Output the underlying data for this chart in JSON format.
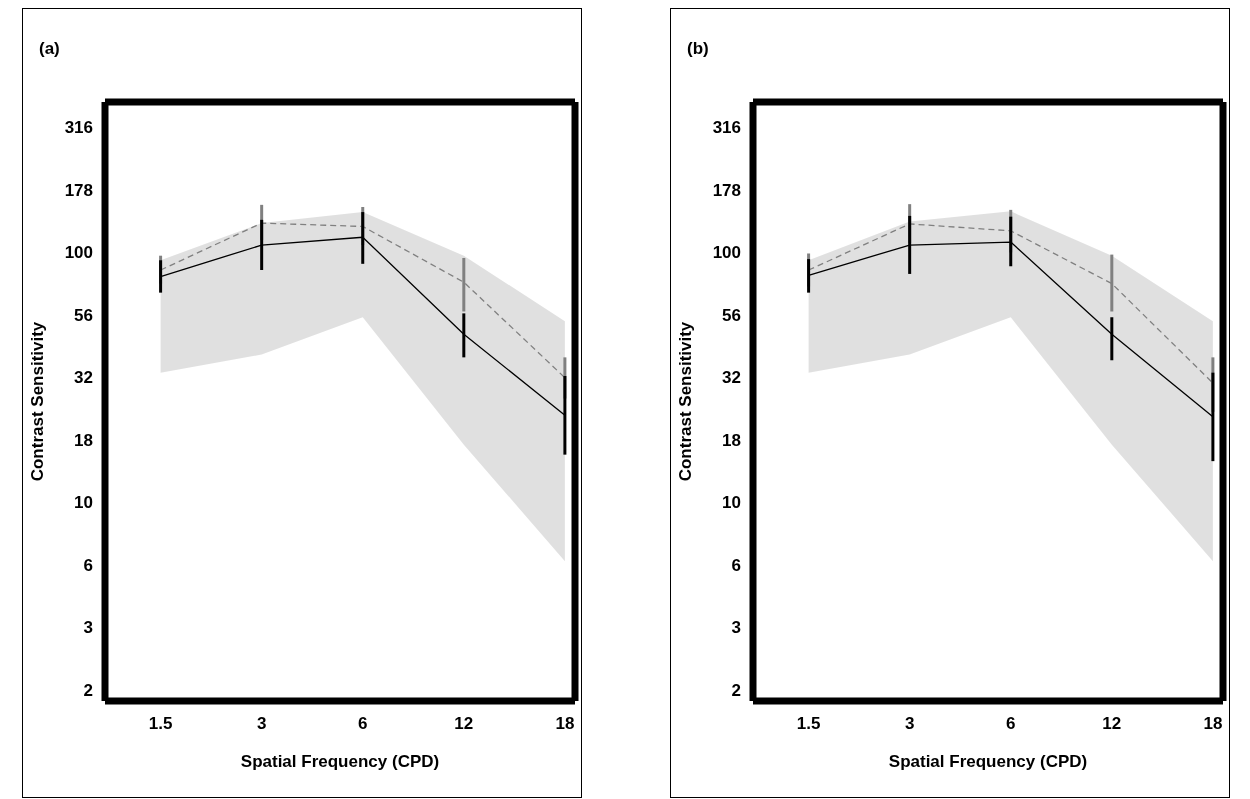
{
  "chart_data": [
    {
      "type": "line",
      "title": "(a)",
      "xlabel": "Spatial Frequency (CPD)",
      "ylabel": "Contrast Sensitivity",
      "categories": [
        "1.5",
        "3",
        "6",
        "12",
        "18"
      ],
      "log": "y",
      "ylim": [
        1.6,
        400
      ],
      "yticks": [
        {
          "value": 1.778,
          "label": "2"
        },
        {
          "value": 3.162,
          "label": "3"
        },
        {
          "value": 5.623,
          "label": "6"
        },
        {
          "value": 10,
          "label": "10"
        },
        {
          "value": 17.78,
          "label": "18"
        },
        {
          "value": 31.62,
          "label": "32"
        },
        {
          "value": 56.23,
          "label": "56"
        },
        {
          "value": 100,
          "label": "100"
        },
        {
          "value": 177.8,
          "label": "178"
        },
        {
          "value": 316.2,
          "label": "316"
        }
      ],
      "series": [
        {
          "color": "#808080",
          "line_style": "dashed",
          "values": [
            85,
            131,
            127,
            76,
            31.5
          ],
          "errors": [
            [
              75,
              97
            ],
            [
              112,
              155
            ],
            [
              107,
              152
            ],
            [
              58,
              95
            ],
            [
              26,
              38
            ]
          ]
        },
        {
          "color": "#000000",
          "line_style": "solid",
          "values": [
            80,
            107,
            115,
            47,
            22.3
          ],
          "errors": [
            [
              69,
              93
            ],
            [
              85,
              135
            ],
            [
              90,
              145
            ],
            [
              38,
              57
            ],
            [
              15.5,
              32
            ]
          ],
          "lower": [
            33,
            39,
            55,
            17,
            5.8
          ],
          "upper": [
            93,
            131,
            145,
            97,
            53
          ]
        }
      ]
    },
    {
      "type": "line",
      "title": "(b)",
      "xlabel": "Spatial Frequency (CPD)",
      "ylabel": "Contrast Sensitivity",
      "categories": [
        "1.5",
        "3",
        "6",
        "12",
        "18"
      ],
      "log": "y",
      "ylim": [
        1.6,
        400
      ],
      "yticks": [
        {
          "value": 1.778,
          "label": "2"
        },
        {
          "value": 3.162,
          "label": "3"
        },
        {
          "value": 5.623,
          "label": "6"
        },
        {
          "value": 10,
          "label": "10"
        },
        {
          "value": 17.78,
          "label": "18"
        },
        {
          "value": 31.62,
          "label": "32"
        },
        {
          "value": 56.23,
          "label": "56"
        },
        {
          "value": 100,
          "label": "100"
        },
        {
          "value": 177.8,
          "label": "178"
        },
        {
          "value": 316.2,
          "label": "316"
        }
      ],
      "series": [
        {
          "color": "#808080",
          "line_style": "dashed",
          "values": [
            85,
            130,
            122,
            75,
            30
          ],
          "errors": [
            [
              73,
              99
            ],
            [
              109,
              156
            ],
            [
              100,
              148
            ],
            [
              58,
              98
            ],
            [
              23,
              38
            ]
          ]
        },
        {
          "color": "#000000",
          "line_style": "solid",
          "values": [
            81,
            107,
            110,
            47,
            22
          ],
          "errors": [
            [
              69,
              94
            ],
            [
              82,
              140
            ],
            [
              88,
              139
            ],
            [
              37,
              55
            ],
            [
              14.6,
              33
            ]
          ],
          "lower": [
            33,
            39,
            55,
            17,
            5.8
          ],
          "upper": [
            93,
            133,
            146,
            97,
            53
          ]
        }
      ]
    }
  ]
}
